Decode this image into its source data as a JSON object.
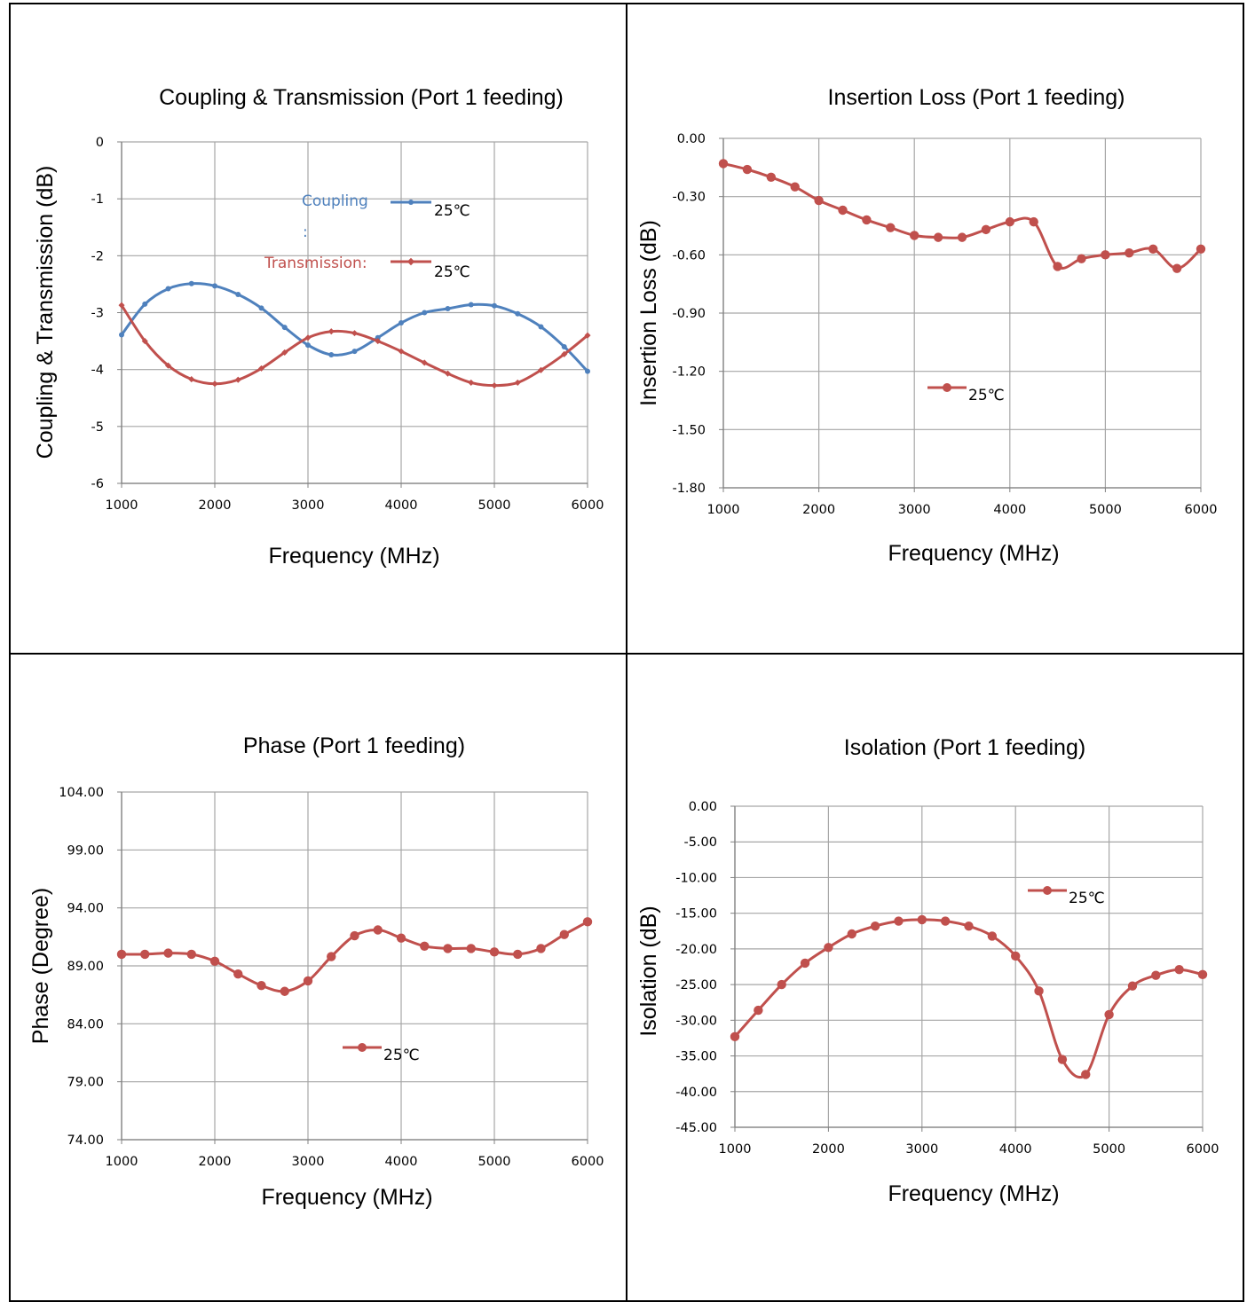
{
  "colors": {
    "blue": "#4F81BD",
    "red": "#C0504D",
    "grid": "#A6A6A6",
    "axis": "#808080"
  },
  "chart_data": [
    {
      "type": "line",
      "title": "Coupling & Transmission (Port 1 feeding)",
      "xlabel": "Frequency (MHz)",
      "ylabel": "Coupling & Transmission (dB)",
      "xlim": [
        1000,
        6000
      ],
      "ylim": [
        -6,
        0
      ],
      "xticks": [
        "1000",
        "2000",
        "3000",
        "4000",
        "5000",
        "6000"
      ],
      "yticks": [
        "0",
        "-1",
        "-2",
        "-3",
        "-4",
        "-5",
        "-6"
      ],
      "grid": true,
      "legend_position": "top-right",
      "legend_entries": [
        {
          "name": "Coupling",
          "suffix": ":",
          "temp": "25℃",
          "color": "#4F81BD"
        },
        {
          "name": "Transmission:",
          "temp": "25℃",
          "color": "#C0504D"
        }
      ],
      "x": [
        1000,
        1250,
        1500,
        1750,
        2000,
        2250,
        2500,
        2750,
        3000,
        3250,
        3500,
        3750,
        4000,
        4250,
        4500,
        4750,
        5000,
        5250,
        5500,
        5750,
        6000
      ],
      "series": [
        {
          "color": "#4F81BD",
          "marker": "dot-small",
          "values": [
            -3.39,
            -2.85,
            -2.58,
            -2.49,
            -2.53,
            -2.68,
            -2.92,
            -3.26,
            -3.57,
            -3.74,
            -3.68,
            -3.44,
            -3.18,
            -3.0,
            -2.93,
            -2.86,
            -2.88,
            -3.02,
            -3.25,
            -3.6,
            -4.03
          ]
        },
        {
          "color": "#C0504D",
          "marker": "diamond-small",
          "values": [
            -2.87,
            -3.5,
            -3.93,
            -4.17,
            -4.25,
            -4.18,
            -3.98,
            -3.7,
            -3.44,
            -3.33,
            -3.36,
            -3.5,
            -3.68,
            -3.88,
            -4.07,
            -4.23,
            -4.28,
            -4.23,
            -4.01,
            -3.73,
            -3.4
          ]
        }
      ]
    },
    {
      "type": "line",
      "title": "Insertion Loss (Port 1 feeding)",
      "xlabel": "Frequency (MHz)",
      "ylabel": "Insertion Loss (dB)",
      "xlim": [
        1000,
        6000
      ],
      "ylim": [
        -1.8,
        0
      ],
      "xticks": [
        "1000",
        "2000",
        "3000",
        "4000",
        "5000",
        "6000"
      ],
      "yticks": [
        "0.00",
        "-0.30",
        "-0.60",
        "-0.90",
        "-1.20",
        "-1.50",
        "-1.80"
      ],
      "grid": true,
      "legend_position": "center-left",
      "legend_entries": [
        {
          "temp": "25℃",
          "color": "#C0504D"
        }
      ],
      "x": [
        1000,
        1250,
        1500,
        1750,
        2000,
        2250,
        2500,
        2750,
        3000,
        3250,
        3500,
        3750,
        4000,
        4250,
        4500,
        4750,
        5000,
        5250,
        5500,
        5750,
        6000
      ],
      "series": [
        {
          "color": "#C0504D",
          "marker": "dot",
          "values": [
            -0.13,
            -0.16,
            -0.2,
            -0.25,
            -0.32,
            -0.37,
            -0.42,
            -0.46,
            -0.5,
            -0.51,
            -0.51,
            -0.47,
            -0.43,
            -0.43,
            -0.66,
            -0.62,
            -0.6,
            -0.59,
            -0.57,
            -0.67,
            -0.57
          ]
        }
      ]
    },
    {
      "type": "line",
      "title": "Phase (Port 1 feeding)",
      "xlabel": "Frequency (MHz)",
      "ylabel": "Phase (Degree)",
      "xlim": [
        1000,
        6000
      ],
      "ylim": [
        74,
        104
      ],
      "xticks": [
        "1000",
        "2000",
        "3000",
        "4000",
        "5000",
        "6000"
      ],
      "yticks": [
        "104.00",
        "99.00",
        "94.00",
        "89.00",
        "84.00",
        "79.00",
        "74.00"
      ],
      "grid": true,
      "legend_position": "bottom-center",
      "legend_entries": [
        {
          "temp": "25℃",
          "color": "#C0504D"
        }
      ],
      "x": [
        1000,
        1250,
        1500,
        1750,
        2000,
        2250,
        2500,
        2750,
        3000,
        3250,
        3500,
        3750,
        4000,
        4250,
        4500,
        4750,
        5000,
        5250,
        5500,
        5750,
        6000
      ],
      "series": [
        {
          "color": "#C0504D",
          "marker": "dot",
          "values": [
            90.0,
            90.0,
            90.1,
            90.0,
            89.4,
            88.3,
            87.3,
            86.8,
            87.7,
            89.8,
            91.6,
            92.1,
            91.4,
            90.7,
            90.5,
            90.5,
            90.2,
            90.0,
            90.5,
            91.7,
            92.8
          ]
        }
      ]
    },
    {
      "type": "line",
      "title": "Isolation (Port 1 feeding)",
      "xlabel": "Frequency (MHz)",
      "ylabel": "Isolation (dB)",
      "xlim": [
        1000,
        6000
      ],
      "ylim": [
        -45,
        0
      ],
      "xticks": [
        "1000",
        "2000",
        "3000",
        "4000",
        "5000",
        "6000"
      ],
      "yticks": [
        "0.00",
        "-5.00",
        "-10.00",
        "-15.00",
        "-20.00",
        "-25.00",
        "-30.00",
        "-35.00",
        "-40.00",
        "-45.00"
      ],
      "grid": true,
      "legend_position": "top-right",
      "legend_entries": [
        {
          "temp": "25℃",
          "color": "#C0504D"
        }
      ],
      "x": [
        1000,
        1250,
        1500,
        1750,
        2000,
        2250,
        2500,
        2750,
        3000,
        3250,
        3500,
        3750,
        4000,
        4250,
        4500,
        4750,
        5000,
        5250,
        5500,
        5750,
        6000
      ],
      "series": [
        {
          "color": "#C0504D",
          "marker": "dot",
          "values": [
            -32.3,
            -28.6,
            -25.0,
            -22.0,
            -19.8,
            -17.9,
            -16.8,
            -16.1,
            -15.9,
            -16.1,
            -16.8,
            -18.2,
            -21.0,
            -25.9,
            -35.5,
            -37.6,
            -29.2,
            -25.2,
            -23.7,
            -22.9,
            -23.6
          ]
        }
      ]
    }
  ]
}
